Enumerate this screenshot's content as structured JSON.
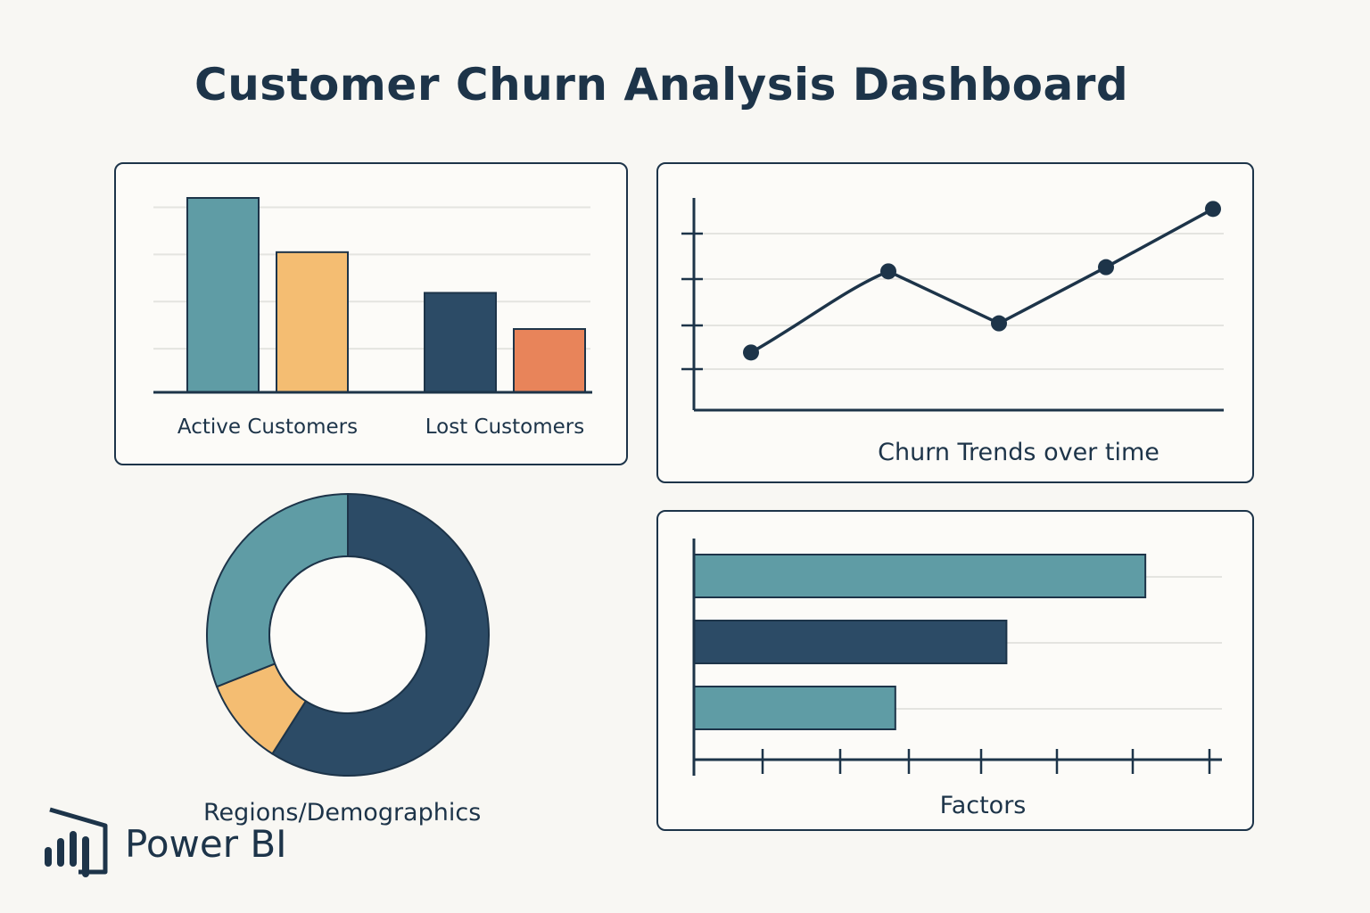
{
  "title": "Customer Churn Analysis Dashboard",
  "colors": {
    "navy": "#2c4b66",
    "teal": "#5f9ca5",
    "amber": "#f4bd72",
    "orange": "#e8845a",
    "ink": "#1d3449",
    "grid": "#e4e4e0"
  },
  "logo": {
    "text": "Power BI",
    "icon": "power-bi-icon"
  },
  "chart_data": [
    {
      "type": "bar",
      "groups": [
        {
          "label": "Active Customers",
          "values": [
            4.3,
            3.1
          ],
          "colors": [
            "#5f9ca5",
            "#f4bd72"
          ]
        },
        {
          "label": "Lost Customers",
          "values": [
            2.2,
            1.4
          ],
          "colors": [
            "#2c4b66",
            "#e8845a"
          ]
        }
      ],
      "ylim": [
        0,
        4.3
      ],
      "grid": true
    },
    {
      "type": "line",
      "xlabel": "Churn Trends over time",
      "values": [
        1.0,
        2.95,
        1.7,
        3.05,
        4.45
      ],
      "ylim": [
        0,
        4.5
      ],
      "ticks": 4,
      "grid": true
    },
    {
      "type": "pie",
      "label": "Regions/Demographics",
      "donut": true,
      "slices": [
        {
          "value": 59,
          "color": "#2c4b66"
        },
        {
          "value": 10,
          "color": "#f4bd72"
        },
        {
          "value": 31,
          "color": "#5f9ca5"
        }
      ]
    },
    {
      "type": "bar",
      "orientation": "horizontal",
      "xlabel": "Factors",
      "values": [
        6.5,
        4.5,
        2.9
      ],
      "colors": [
        "#5f9ca5",
        "#2c4b66",
        "#5f9ca5"
      ],
      "xlim": [
        0,
        7.5
      ],
      "ticks": 8,
      "grid": true
    }
  ]
}
